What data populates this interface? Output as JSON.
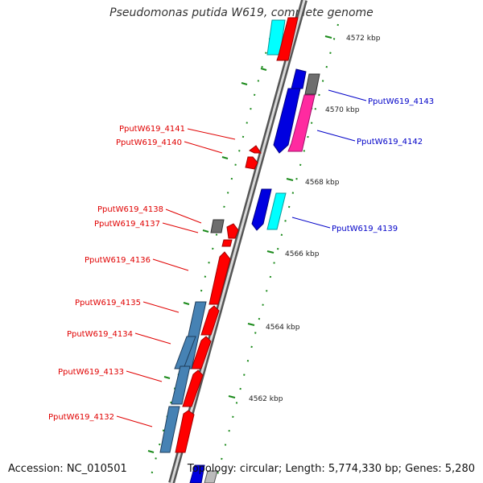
{
  "title": "Pseudomonas putida W619, complete genome",
  "accession_text": "Accession: NC_010501",
  "topology_text": "Topology: circular; Length: 5,774,330 bp; Genes: 5,280",
  "ticks": [
    "4572 kbp",
    "4570 kbp",
    "4568 kbp",
    "4566 kbp",
    "4564 kbp",
    "4562 kbp"
  ],
  "genes_left": [
    "PputW619_4141",
    "PputW619_4140",
    "PputW619_4138",
    "PputW619_4137",
    "PputW619_4136",
    "PputW619_4135",
    "PputW619_4134",
    "PputW619_4133",
    "PputW619_4132"
  ],
  "genes_right": [
    "PputW619_4143",
    "PputW619_4142",
    "PputW619_4139"
  ],
  "colors": {
    "red": "#ff0000",
    "blue": "#0000e0",
    "cyan": "#00ffff",
    "magenta": "#ff2aa0",
    "steelblue": "#4682b4",
    "gray": "#6e6e6e",
    "dotted_guide": "#1a8a1a",
    "label_red": "#e00000",
    "label_blue": "#0000c8"
  }
}
